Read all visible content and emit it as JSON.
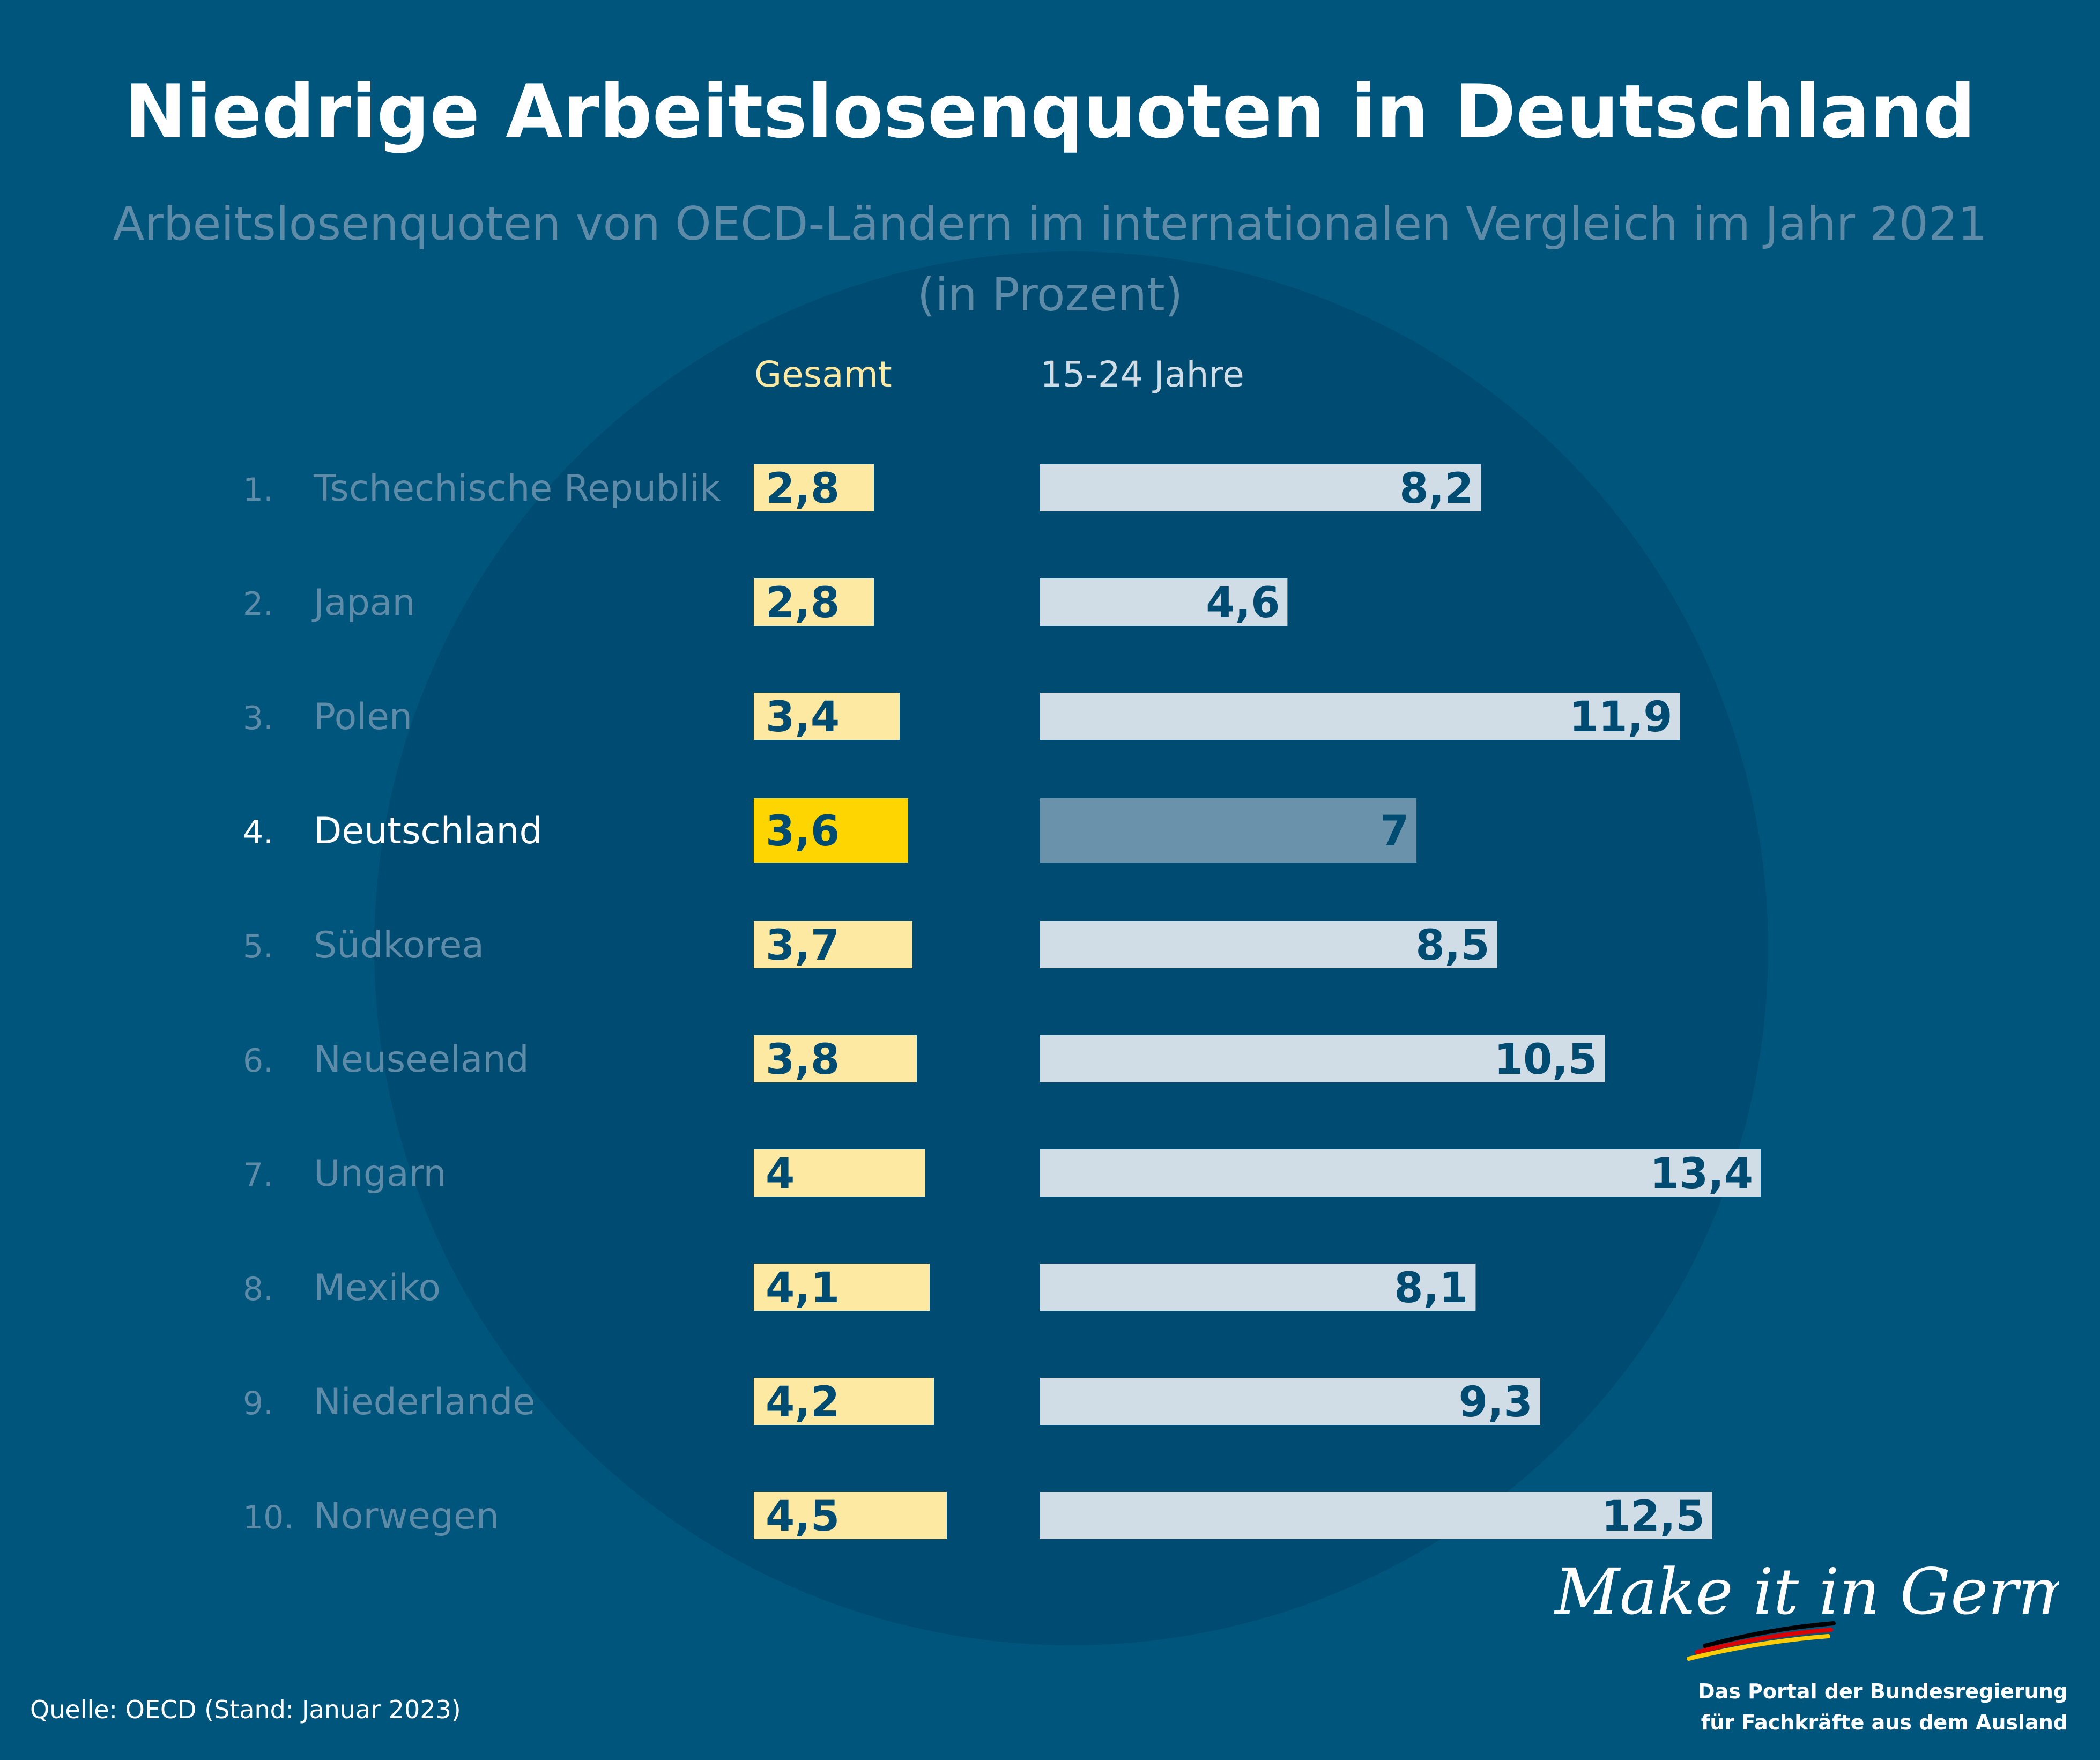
{
  "title": "Niedrige Arbeitslosenquoten in Deutschland",
  "subtitle_line1": "Arbeitslosenquoten von OECD-Ländern im internationalen Vergleich im Jahr 2021",
  "subtitle_line2": "(in Prozent)",
  "colors": {
    "background": "#00557d",
    "circle": "#004b71",
    "gesamt_bar": "#fde9a1",
    "gesamt_highlight": "#ffd500",
    "youth_bar": "#d0dde6",
    "youth_highlight": "#6a92ab",
    "value_text": "#004b71",
    "label_muted": "#5e8ba8",
    "label_highlight": "#ffffff"
  },
  "chart_data": {
    "type": "bar",
    "orientation": "horizontal",
    "categories": [
      "Tschechische Republik",
      "Japan",
      "Polen",
      "Deutschland",
      "Südkorea",
      "Neuseeland",
      "Ungarn",
      "Mexiko",
      "Niederlande",
      "Norwegen"
    ],
    "ranks": [
      "1.",
      "2.",
      "3.",
      "4.",
      "5.",
      "6.",
      "7.",
      "8.",
      "9.",
      "10."
    ],
    "highlight": "Deutschland",
    "series": [
      {
        "name": "Gesamt",
        "values": [
          2.8,
          2.8,
          3.4,
          3.6,
          3.7,
          3.8,
          4,
          4.1,
          4.2,
          4.5
        ],
        "labels": [
          "2,8",
          "2,8",
          "3,4",
          "3,6",
          "3,7",
          "3,8",
          "4",
          "4,1",
          "4,2",
          "4,5"
        ]
      },
      {
        "name": "15-24 Jahre",
        "values": [
          8.2,
          4.6,
          11.9,
          7,
          8.5,
          10.5,
          13.4,
          8.1,
          9.3,
          12.5
        ],
        "labels": [
          "8,2",
          "4,6",
          "11,9",
          "7",
          "8,5",
          "10,5",
          "13,4",
          "8,1",
          "9,3",
          "12,5"
        ]
      }
    ],
    "title": "Niedrige Arbeitslosenquoten in Deutschland",
    "xlabel": "",
    "ylabel": ""
  },
  "source": "Quelle: OECD (Stand: Januar 2023)",
  "brand": {
    "signature": "Make it in Germany",
    "tagline_line1": "Das Portal der Bundesregierung",
    "tagline_line2": "für Fachkräfte aus dem Ausland"
  }
}
